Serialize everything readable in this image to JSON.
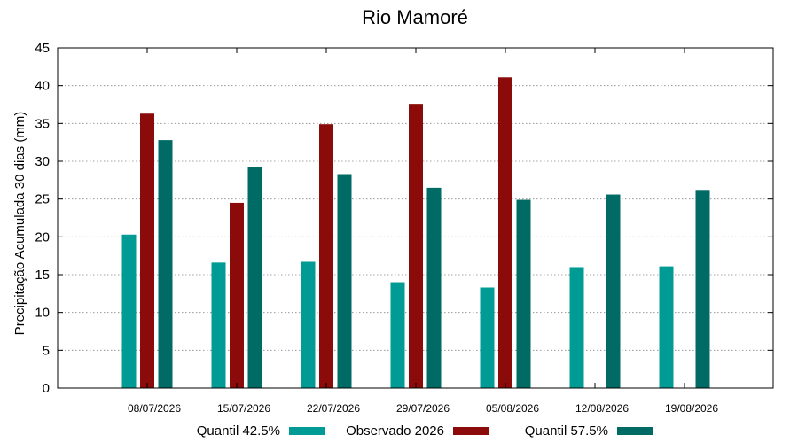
{
  "chart_data": {
    "type": "bar",
    "title": "Rio Mamoré",
    "xlabel": "",
    "ylabel": "Precipitação Acumulada 30 dias (mm)",
    "ylim": [
      0,
      45
    ],
    "yticks": [
      0,
      5,
      10,
      15,
      20,
      25,
      30,
      35,
      40,
      45
    ],
    "grid": "horizontal dotted",
    "legend_position": "bottom",
    "categories": [
      "08/07/2026",
      "15/07/2026",
      "22/07/2026",
      "29/07/2026",
      "05/08/2026",
      "12/08/2026",
      "19/08/2026"
    ],
    "series": [
      {
        "name": "Quantil 42.5%",
        "color": "#009b95",
        "values": [
          20.3,
          16.6,
          16.7,
          14.0,
          13.3,
          16.0,
          16.1
        ]
      },
      {
        "name": "Observado 2026",
        "color": "#8b0a0a",
        "values": [
          36.3,
          24.5,
          34.9,
          37.6,
          41.1,
          null,
          null
        ]
      },
      {
        "name": "Quantil 57.5%",
        "color": "#006a64",
        "values": [
          32.8,
          29.2,
          28.3,
          26.5,
          24.9,
          25.6,
          26.1
        ]
      }
    ]
  }
}
